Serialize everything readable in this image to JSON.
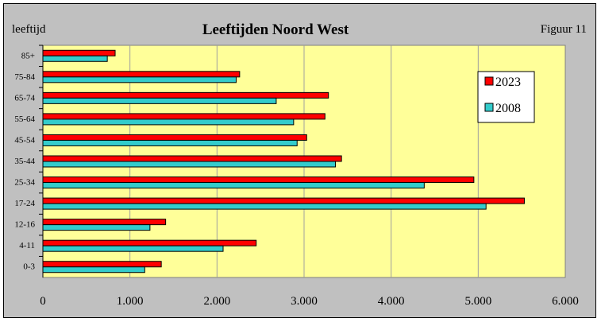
{
  "chart_data": {
    "type": "bar",
    "orientation": "horizontal",
    "title": "Leeftijden Noord West",
    "ylabel": "leeftijd",
    "figure_label": "Figuur 11",
    "categories": [
      "85+",
      "75-84",
      "65-74",
      "55-64",
      "45-54",
      "35-44",
      "25-34",
      "17-24",
      "12-16",
      "4-11",
      "0-3"
    ],
    "series": [
      {
        "name": "2023",
        "color": "#ff0000",
        "values": [
          830,
          2260,
          3280,
          3240,
          3030,
          3430,
          4950,
          5530,
          1410,
          2450,
          1360
        ]
      },
      {
        "name": "2008",
        "color": "#33cccc",
        "values": [
          740,
          2220,
          2680,
          2880,
          2920,
          3360,
          4380,
          5090,
          1230,
          2070,
          1170
        ]
      }
    ],
    "xlim": [
      0,
      6000
    ],
    "xticks": [
      0,
      1000,
      2000,
      3000,
      4000,
      5000,
      6000
    ],
    "xtick_labels": [
      "0",
      "1.000",
      "2.000",
      "3.000",
      "4.000",
      "5.000",
      "6.000"
    ],
    "grid": true,
    "legend_position": "top-right",
    "plot_background": "#ffff99"
  }
}
